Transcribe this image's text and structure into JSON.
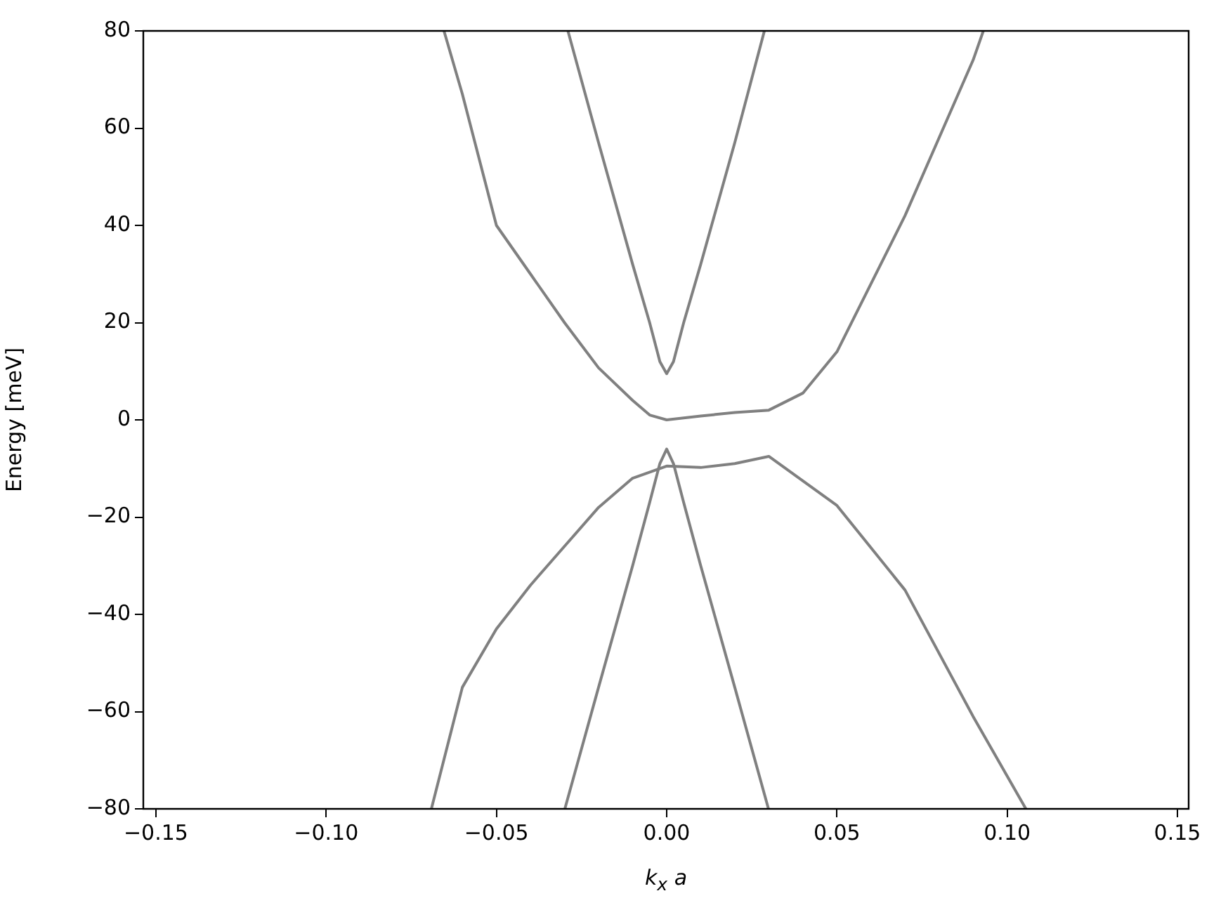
{
  "chart_data": {
    "type": "line",
    "xlabel": "k$_{x}$ a",
    "ylabel": "Energy [meV]",
    "xlim": [
      -0.1537,
      0.1533
    ],
    "ylim": [
      -80,
      80
    ],
    "xticks": [
      {
        "value": -0.15,
        "label": "−0.15"
      },
      {
        "value": -0.1,
        "label": "−0.10"
      },
      {
        "value": -0.05,
        "label": "−0.05"
      },
      {
        "value": 0,
        "label": "0.00"
      },
      {
        "value": 0.05,
        "label": "0.05"
      },
      {
        "value": 0.1,
        "label": "0.10"
      },
      {
        "value": 0.15,
        "label": "0.15"
      }
    ],
    "yticks": [
      {
        "value": -80,
        "label": "−80"
      },
      {
        "value": -60,
        "label": "−60"
      },
      {
        "value": -40,
        "label": "−40"
      },
      {
        "value": -20,
        "label": "−20"
      },
      0,
      20,
      40,
      60,
      80
    ],
    "grid": false,
    "legend": false,
    "marker": "none",
    "line_style": "solid",
    "series": [
      {
        "color": "#808080",
        "x": [
          -0.0654,
          -0.06,
          -0.05,
          -0.04,
          -0.03,
          -0.02,
          -0.01,
          -0.005,
          0,
          0.01,
          0.02,
          0.03,
          0.04,
          0.05,
          0.07,
          0.09,
          0.093
        ],
        "values": [
          80,
          67,
          40,
          30,
          20,
          10.7,
          4,
          1,
          0,
          0.8,
          1.5,
          2,
          5.5,
          14,
          42,
          74,
          80
        ]
      },
      {
        "color": "#808080",
        "x": [
          -0.029,
          -0.02,
          -0.01,
          -0.005,
          -0.002,
          0,
          0.002,
          0.005,
          0.01,
          0.02,
          0.0287
        ],
        "values": [
          80,
          57,
          32,
          20,
          12,
          9.5,
          12,
          20,
          32,
          57,
          80
        ]
      },
      {
        "color": "#808080",
        "x": [
          -0.0691,
          -0.06,
          -0.05,
          -0.04,
          -0.03,
          -0.02,
          -0.01,
          0,
          0.01,
          0.02,
          0.03,
          0.05,
          0.07,
          0.09,
          0.1055
        ],
        "values": [
          -80,
          -55,
          -43,
          -34,
          -26,
          -18,
          -12,
          -9.5,
          -9.8,
          -9,
          -7.5,
          -17.6,
          -35,
          -61,
          -80
        ]
      },
      {
        "color": "#808080",
        "x": [
          -0.0299,
          -0.02,
          -0.01,
          -0.005,
          -0.002,
          0,
          0.002,
          0.005,
          0.01,
          0.02,
          0.0299
        ],
        "values": [
          -80,
          -55,
          -30,
          -17,
          -9,
          -6,
          -9,
          -17,
          -30,
          -55,
          -80
        ]
      }
    ]
  }
}
